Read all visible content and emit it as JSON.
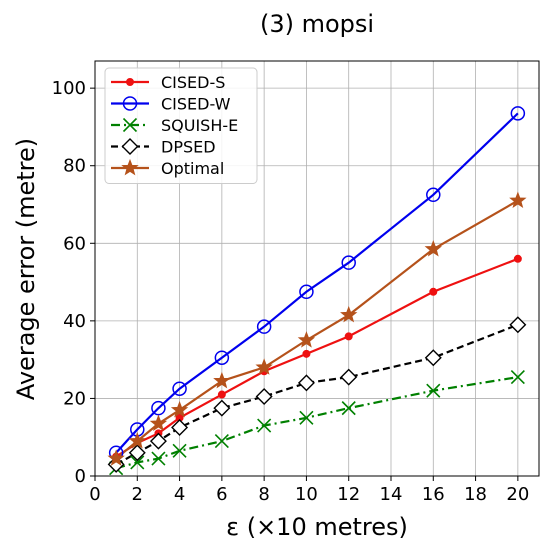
{
  "chart_data": {
    "type": "line",
    "title": "(3) mopsi",
    "xlabel": "ε (×10 metres)",
    "ylabel": "Average error (metre)",
    "xlim": [
      0,
      21
    ],
    "ylim": [
      0,
      107
    ],
    "xticks": [
      0,
      2,
      4,
      6,
      8,
      10,
      12,
      14,
      16,
      18,
      20
    ],
    "yticks": [
      0,
      20,
      40,
      60,
      80,
      100
    ],
    "grid": true,
    "legend_position": "top-left",
    "series": [
      {
        "name": "CISED-S",
        "color": "#ee1111",
        "marker": "dot",
        "linestyle": "solid",
        "x": [
          1,
          2,
          3,
          4,
          6,
          8,
          10,
          12,
          16,
          20
        ],
        "y": [
          5.0,
          8.5,
          11.0,
          15.0,
          21.0,
          27.0,
          31.5,
          36.0,
          47.5,
          56.0
        ]
      },
      {
        "name": "CISED-W",
        "color": "#0000ee",
        "marker": "circle",
        "linestyle": "solid",
        "x": [
          1,
          2,
          3,
          4,
          6,
          8,
          10,
          12,
          16,
          20
        ],
        "y": [
          6.0,
          12.0,
          17.5,
          22.5,
          30.5,
          38.5,
          47.5,
          55.0,
          72.5,
          93.5
        ]
      },
      {
        "name": "SQUISH-E",
        "color": "#008000",
        "marker": "x",
        "linestyle": "dashdot",
        "x": [
          1,
          2,
          3,
          4,
          6,
          8,
          10,
          12,
          16,
          20
        ],
        "y": [
          2.0,
          3.5,
          4.5,
          6.5,
          9.0,
          13.0,
          15.0,
          17.5,
          22.0,
          25.5
        ]
      },
      {
        "name": "DPSED",
        "color": "#000000",
        "marker": "diamond",
        "linestyle": "dashed",
        "x": [
          1,
          2,
          3,
          4,
          6,
          8,
          10,
          12,
          16,
          20
        ],
        "y": [
          3.0,
          6.0,
          9.0,
          12.5,
          17.5,
          20.5,
          24.0,
          25.5,
          30.5,
          39.0
        ]
      },
      {
        "name": "Optimal",
        "color": "#b5521b",
        "marker": "star",
        "linestyle": "solid",
        "x": [
          1,
          2,
          3,
          4,
          6,
          8,
          10,
          12,
          16,
          20
        ],
        "y": [
          4.5,
          9.0,
          13.5,
          17.0,
          24.5,
          28.0,
          35.0,
          41.5,
          58.5,
          71.0
        ]
      }
    ]
  }
}
